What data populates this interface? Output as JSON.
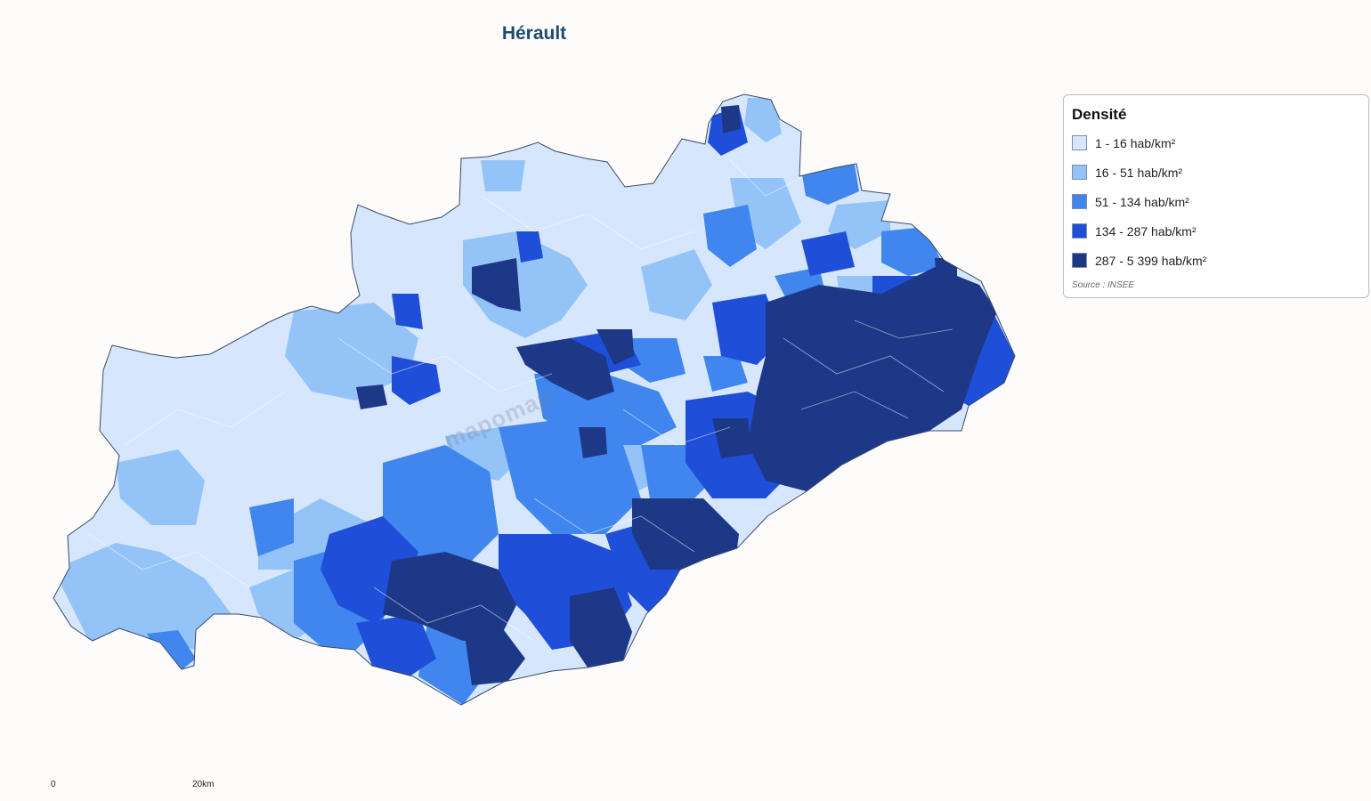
{
  "title": "Hérault",
  "legend": {
    "title": "Densité",
    "classes": [
      {
        "label": "1 - 16 hab/km²",
        "color": "#d6e6fc"
      },
      {
        "label": "16 - 51 hab/km²",
        "color": "#94c3f8"
      },
      {
        "label": "51 - 134 hab/km²",
        "color": "#4186ee"
      },
      {
        "label": "134 - 287 hab/km²",
        "color": "#1f4fd8"
      },
      {
        "label": "287 - 5 399 hab/km²",
        "color": "#1e3888"
      }
    ],
    "source": "Source : INSEE"
  },
  "scale": {
    "start_label": "0",
    "end_label": "20km"
  },
  "watermark": "mapomap"
}
